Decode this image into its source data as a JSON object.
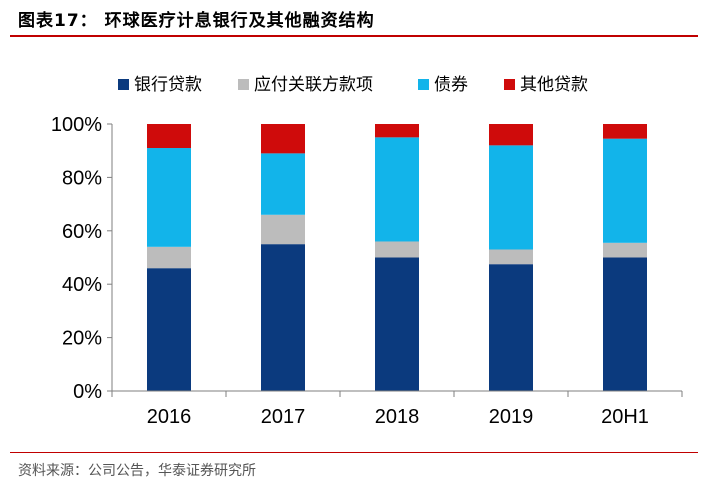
{
  "header": {
    "title": "图表17：  环球医疗计息银行及其他融资结构"
  },
  "footer": {
    "source": "资料来源：公司公告，华泰证券研究所"
  },
  "colors": {
    "rule": "#c00000",
    "series": [
      "#0b3a7e",
      "#bcbcbc",
      "#12b4ea",
      "#cf0b0b"
    ]
  },
  "chart_data": {
    "type": "bar",
    "stacked": true,
    "categories": [
      "2016",
      "2017",
      "2018",
      "2019",
      "20H1"
    ],
    "series": [
      {
        "name": "银行贷款",
        "values": [
          46,
          55,
          50,
          47.5,
          50
        ]
      },
      {
        "name": "应付关联方款项",
        "values": [
          8,
          11,
          6,
          5.5,
          5.5
        ]
      },
      {
        "name": "债券",
        "values": [
          37,
          23,
          39,
          39,
          39
        ]
      },
      {
        "name": "其他贷款",
        "values": [
          9,
          11,
          5,
          8,
          5.5
        ]
      }
    ],
    "ylim": [
      0,
      100
    ],
    "yticks": [
      "0%",
      "20%",
      "40%",
      "60%",
      "80%",
      "100%"
    ],
    "legend_position": "top",
    "grid": false
  }
}
